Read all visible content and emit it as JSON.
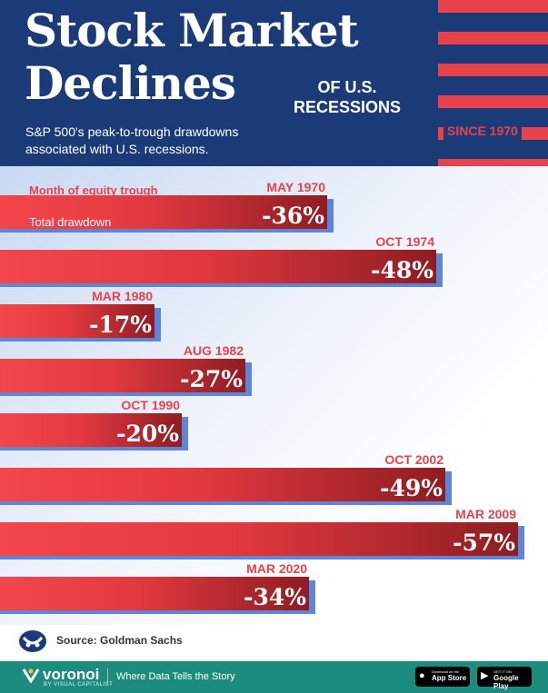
{
  "header": {
    "title_line1": "Stock Market",
    "title_line2": "Declines",
    "title_suffix_line1": "OF U.S.",
    "title_suffix_line2": "RECESSIONS",
    "subtitle_line1": "S&P 500's peak-to-trough drawdowns",
    "subtitle_line2": "associated with U.S. recessions.",
    "since": "SINCE 1970",
    "colors": {
      "navy": "#1b3b78",
      "red": "#e8434c"
    }
  },
  "chart_data": {
    "type": "bar",
    "orientation": "horizontal",
    "legend": {
      "month_label": "Month of equity trough",
      "total_label": "Total drawdown"
    },
    "categories": [
      "MAY 1970",
      "OCT 1974",
      "MAR 1980",
      "AUG 1982",
      "OCT 1990",
      "OCT 2002",
      "MAR 2009",
      "MAR 2020"
    ],
    "values": [
      -36,
      -48,
      -17,
      -27,
      -20,
      -49,
      -57,
      -34
    ],
    "value_labels": [
      "-36%",
      "-48%",
      "-17%",
      "-27%",
      "-20%",
      "-49%",
      "-57%",
      "-34%"
    ],
    "xlim": [
      0,
      -57
    ],
    "colors": {
      "bar_light": "#f2464c",
      "bar_dark": "#8e1d22",
      "shadow": "#5f86d6",
      "label": "#e8434c"
    }
  },
  "footer": {
    "source_label": "Source:",
    "source_value": "Goldman Sachs",
    "brand": "voronoi",
    "brand_sub": "BY VISUAL CAPITALIST",
    "tagline": "Where Data Tells the Story",
    "app_store_small": "Download on the",
    "app_store_big": "App Store",
    "google_play_small": "GET IT ON",
    "google_play_big": "Google Play"
  }
}
